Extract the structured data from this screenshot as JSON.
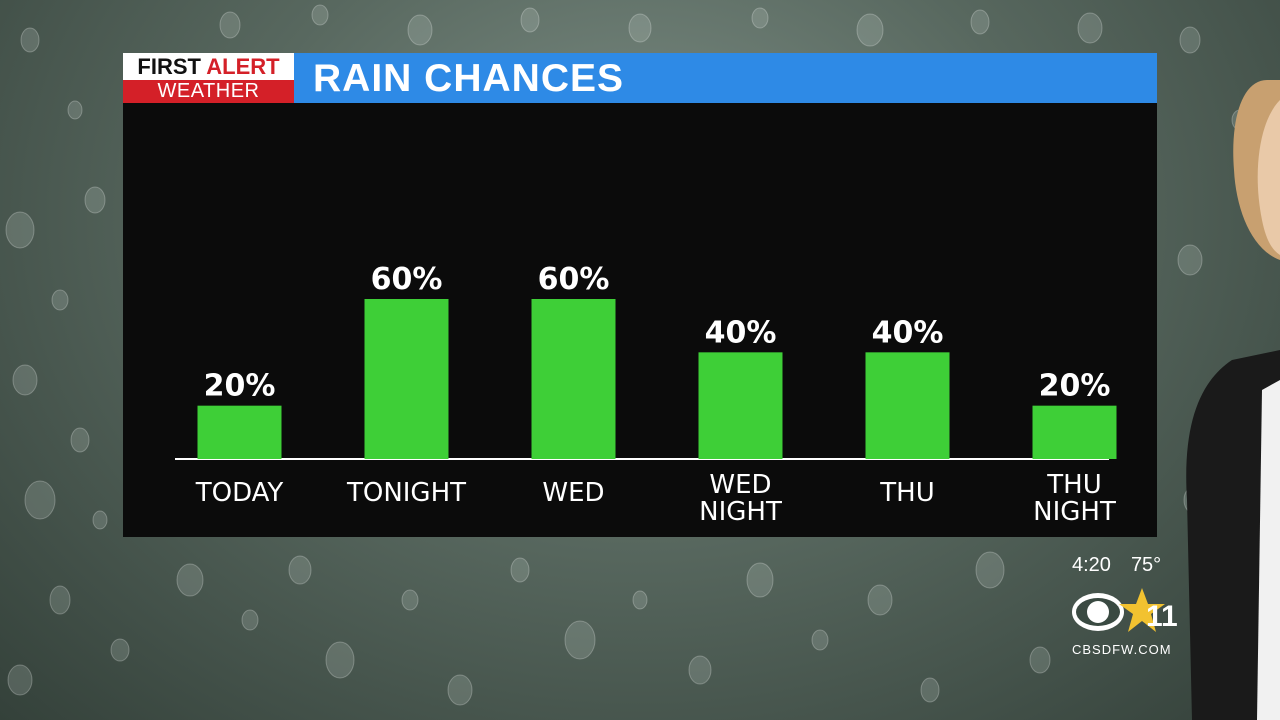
{
  "branding": {
    "logo_line1_a": "FIRST",
    "logo_line1_b": "ALERT",
    "logo_line2": "WEATHER",
    "station_number": "11",
    "website": "CBSDFW.COM"
  },
  "header": {
    "title": "RAIN CHANCES"
  },
  "status": {
    "time": "4:20",
    "temperature": "75°"
  },
  "colors": {
    "header_blue": "#2e8ae6",
    "bar_green": "#3ecf37",
    "alert_red": "#d42028",
    "panel_black": "#0b0b0b"
  },
  "chart_data": {
    "type": "bar",
    "title": "RAIN CHANCES",
    "categories": [
      "TODAY",
      "TONIGHT",
      "WED",
      "WED NIGHT",
      "THU",
      "THU NIGHT"
    ],
    "category_lines": [
      [
        "TODAY"
      ],
      [
        "TONIGHT"
      ],
      [
        "WED"
      ],
      [
        "WED",
        "NIGHT"
      ],
      [
        "THU"
      ],
      [
        "THU",
        "NIGHT"
      ]
    ],
    "values": [
      20,
      60,
      60,
      40,
      40,
      20
    ],
    "value_labels": [
      "20%",
      "60%",
      "60%",
      "40%",
      "40%",
      "20%"
    ],
    "unit": "%",
    "ylim": [
      0,
      60
    ],
    "grid": false,
    "legend": "none"
  }
}
